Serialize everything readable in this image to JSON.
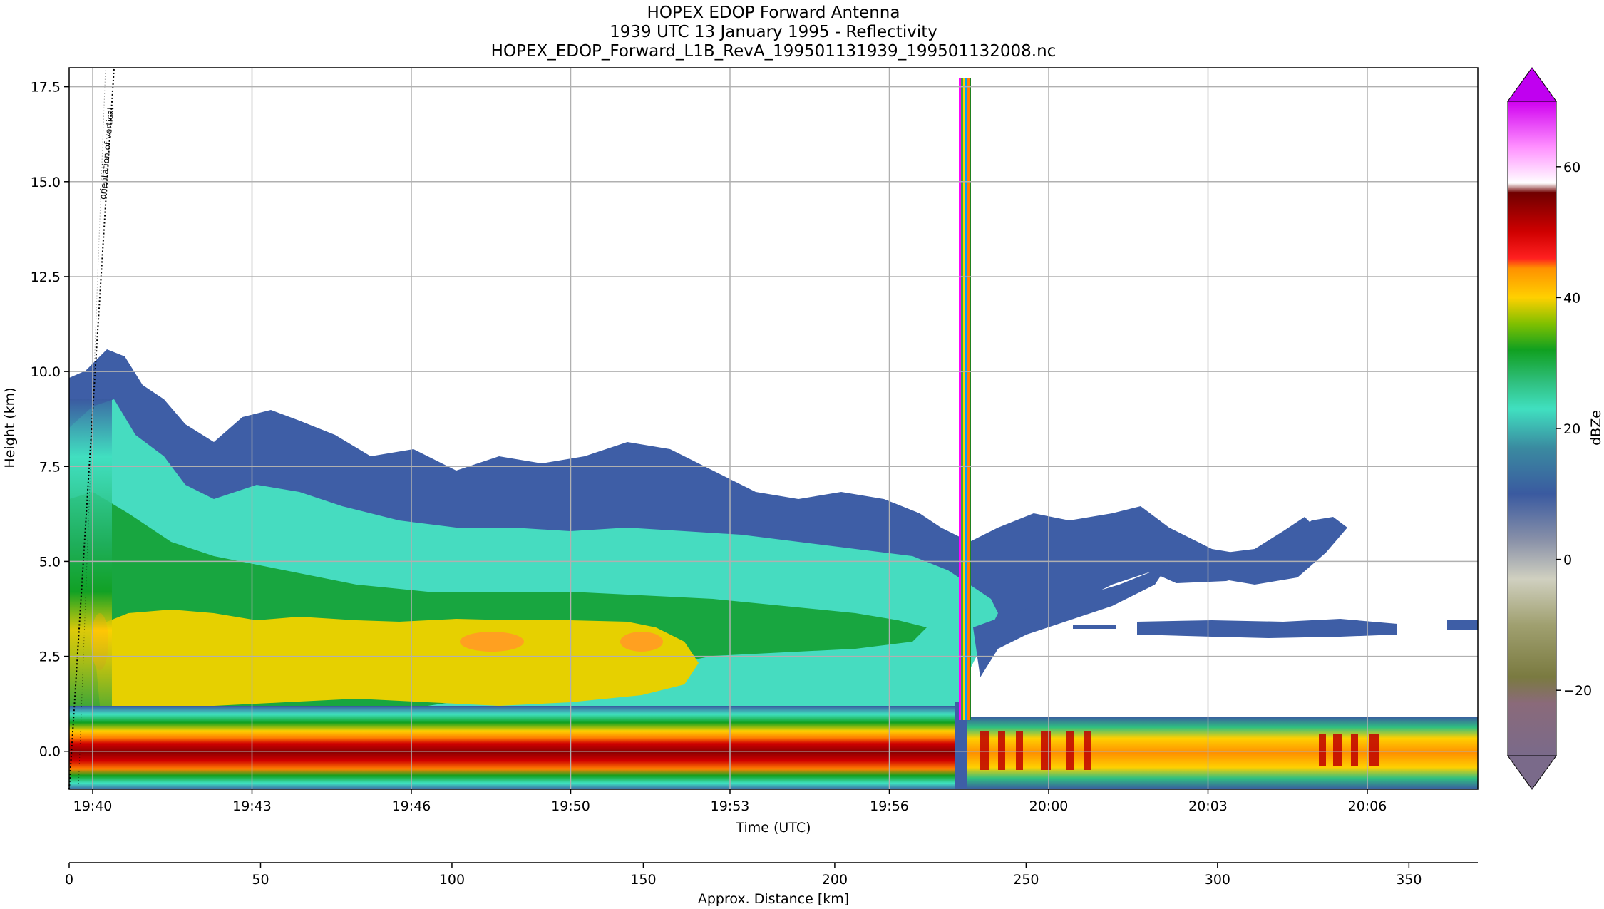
{
  "chart_data": {
    "type": "heatmap",
    "title": "HOPEX EDOP Forward Antenna",
    "subtitle": "1939 UTC 13 January 1995 - Reflectivity",
    "filename": "HOPEX_EDOP_Forward_L1B_RevA_199501131939_199501132008.nc",
    "xlabel": "Time (UTC)",
    "ylabel": "Height (km)",
    "x_ticks": [
      "19:40",
      "19:43",
      "19:46",
      "19:50",
      "19:53",
      "19:56",
      "20:00",
      "20:03",
      "20:06"
    ],
    "y_ticks": [
      "0.0",
      "2.5",
      "5.0",
      "7.5",
      "10.0",
      "12.5",
      "15.0",
      "17.5"
    ],
    "ylim": [
      -1.0,
      18.0
    ],
    "grid": true,
    "secondary_xlabel": "Approx. Distance [km]",
    "secondary_x_ticks": [
      "0",
      "50",
      "100",
      "150",
      "200",
      "250",
      "300",
      "350"
    ],
    "secondary_xlim": [
      0,
      368
    ],
    "annotation": "orientation of vertical",
    "colorbar": {
      "label": "dBZe",
      "ticks": [
        "60",
        "40",
        "20",
        "0",
        "−20"
      ],
      "range": [
        -30,
        70
      ],
      "extend": "both",
      "colors": [
        "#7a6a8a",
        "#8a8a5a",
        "#d0d0c8",
        "#3a5aa0",
        "#40e0c0",
        "#20a040",
        "#ffd000",
        "#ff8000",
        "#d00000",
        "#8a0000",
        "#ffffff",
        "#ff80ff",
        "#a000e0"
      ]
    },
    "features": [
      {
        "name": "surface-echo-band",
        "height_km": [
          -0.5,
          0.7
        ],
        "max_dbz": 55
      },
      {
        "name": "bright-band-layer",
        "height_km": [
          2.5,
          3.6
        ],
        "max_dbz": 45
      },
      {
        "name": "anvil-cloud-top",
        "height_km": [
          5.0,
          10.5
        ],
        "min_dbz": 5
      },
      {
        "name": "interference-spike",
        "time": "19:58",
        "height_km": [
          0,
          17.6
        ]
      }
    ]
  }
}
